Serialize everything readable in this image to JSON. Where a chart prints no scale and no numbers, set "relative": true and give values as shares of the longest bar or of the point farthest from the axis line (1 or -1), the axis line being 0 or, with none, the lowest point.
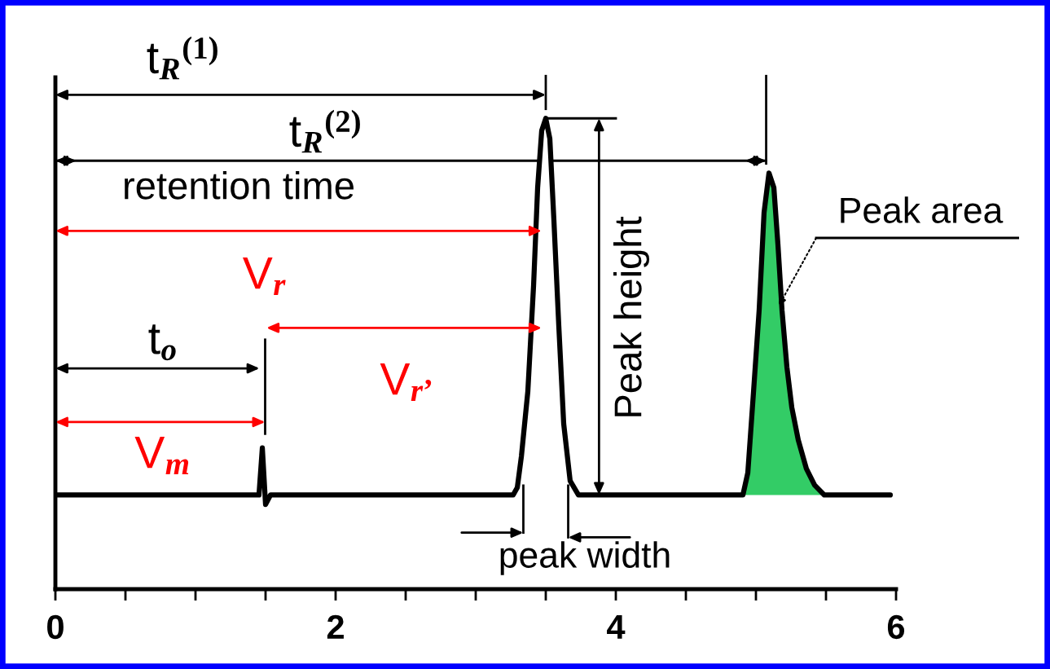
{
  "chart_data": {
    "type": "line",
    "relative": true,
    "xlim": [
      0,
      6
    ],
    "xticks": [
      0,
      {
        "value": 0.5,
        "label": null
      },
      {
        "value": 1,
        "label": null
      },
      {
        "value": 1.5,
        "label": null
      },
      2,
      {
        "value": 2.5,
        "label": null
      },
      {
        "value": 3,
        "label": null
      },
      {
        "value": 3.5,
        "label": null
      },
      4,
      {
        "value": 4.5,
        "label": null
      },
      {
        "value": 5,
        "label": null
      },
      {
        "value": 5.5,
        "label": null
      },
      6
    ],
    "series": [
      {
        "color": "#000000",
        "x": [
          0,
          1.453,
          1.477,
          1.5,
          1.535,
          3.267,
          3.297,
          3.326,
          3.372,
          3.413,
          3.442,
          3.471,
          3.5,
          3.529,
          3.558,
          3.593,
          3.628,
          3.674,
          3.733,
          4.907,
          4.942,
          4.983,
          5.023,
          5.058,
          5.093,
          5.128,
          5.157,
          5.186,
          5.221,
          5.256,
          5.302,
          5.36,
          5.419,
          5.488,
          5.959
        ],
        "values": [
          0.2,
          0.2,
          0.3,
          0.18,
          0.2,
          0.2,
          0.216,
          0.282,
          0.42,
          0.645,
          0.853,
          0.974,
          1.0,
          0.957,
          0.784,
          0.559,
          0.351,
          0.23,
          0.2,
          0.2,
          0.247,
          0.42,
          0.593,
          0.8,
          0.884,
          0.853,
          0.732,
          0.593,
          0.472,
          0.386,
          0.317,
          0.256,
          0.221,
          0.2,
          0.2
        ]
      },
      {
        "type": "area",
        "color": "#33cc66",
        "x": [
          4.907,
          4.942,
          4.983,
          5.023,
          5.058,
          5.093,
          5.128,
          5.157,
          5.186,
          5.221,
          5.256,
          5.302,
          5.36,
          5.419,
          5.488
        ],
        "values": [
          0.2,
          0.247,
          0.42,
          0.593,
          0.8,
          0.884,
          0.853,
          0.732,
          0.593,
          0.472,
          0.386,
          0.317,
          0.256,
          0.221,
          0.2
        ]
      }
    ],
    "annotations": [
      "t$_{R}$$^{(1)}$",
      "t$_{R}$$^{(2)}$",
      "retention time",
      "V$_{r}$",
      "V$_{r’}$",
      "t$_{o}$",
      "V$_{m}$",
      "Peak height",
      "peak width",
      "Peak area"
    ]
  }
}
